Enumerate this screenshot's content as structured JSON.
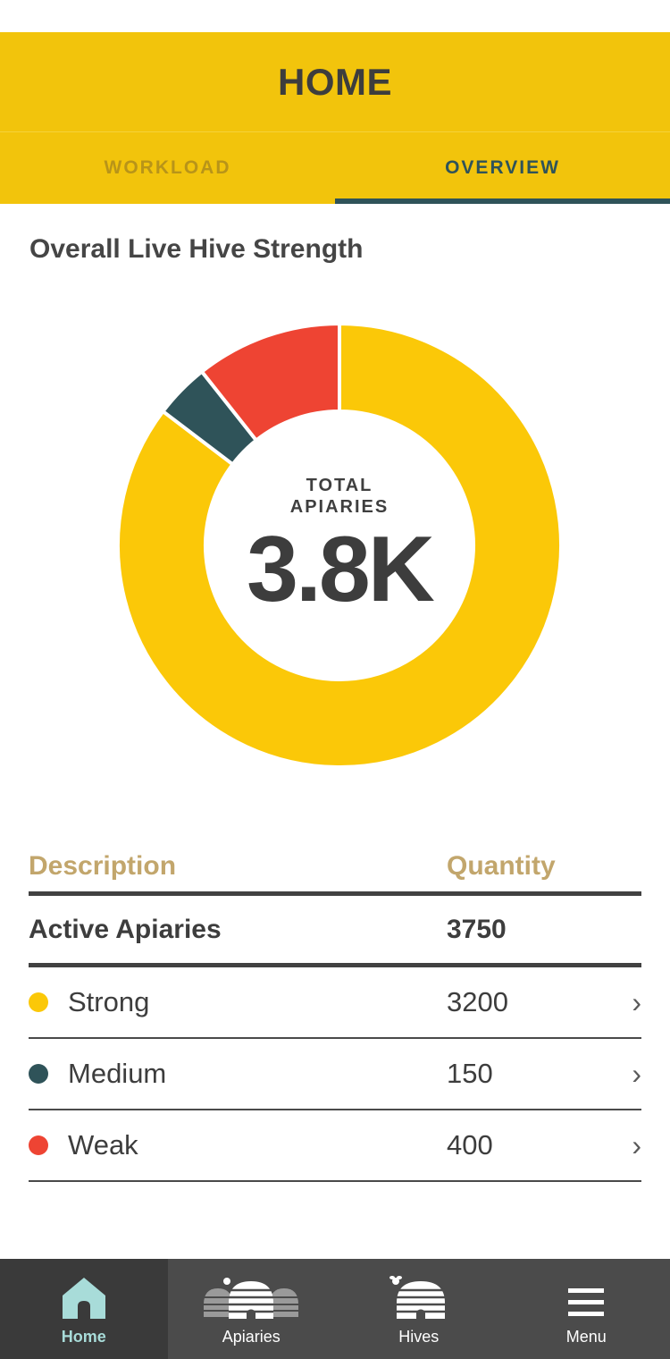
{
  "header": {
    "title": "HOME"
  },
  "tabs": [
    {
      "label": "WORKLOAD",
      "active": false
    },
    {
      "label": "OVERVIEW",
      "active": true
    }
  ],
  "section": {
    "title": "Overall Live Hive Strength"
  },
  "chart_data": {
    "type": "pie",
    "variant": "donut",
    "categories": [
      "Strong",
      "Medium",
      "Weak"
    ],
    "values": [
      3200,
      150,
      400
    ],
    "colors": [
      "#fbc808",
      "#2f5359",
      "#ee4433"
    ],
    "center_label": "TOTAL APIARIES",
    "center_value": "3.8K"
  },
  "table": {
    "headers": {
      "description": "Description",
      "quantity": "Quantity"
    },
    "total": {
      "label": "Active Apiaries",
      "value": "3750"
    },
    "rows": [
      {
        "label": "Strong",
        "value": "3200",
        "color": "#fbc808"
      },
      {
        "label": "Medium",
        "value": "150",
        "color": "#2f5359"
      },
      {
        "label": "Weak",
        "value": "400",
        "color": "#ee4433"
      }
    ],
    "chevron": "›"
  },
  "nav": [
    {
      "label": "Home",
      "icon": "house-icon",
      "active": true
    },
    {
      "label": "Apiaries",
      "icon": "apiaries-icon",
      "active": false
    },
    {
      "label": "Hives",
      "icon": "hive-icon",
      "active": false
    },
    {
      "label": "Menu",
      "icon": "hamburger-menu-icon",
      "active": false
    }
  ],
  "colors": {
    "brand_yellow": "#f2c40c",
    "accent_teal": "#2f5359",
    "header_tan": "#c2a66c",
    "nav_bg": "#4b4b4b",
    "nav_active_text": "#a8dcd9"
  }
}
